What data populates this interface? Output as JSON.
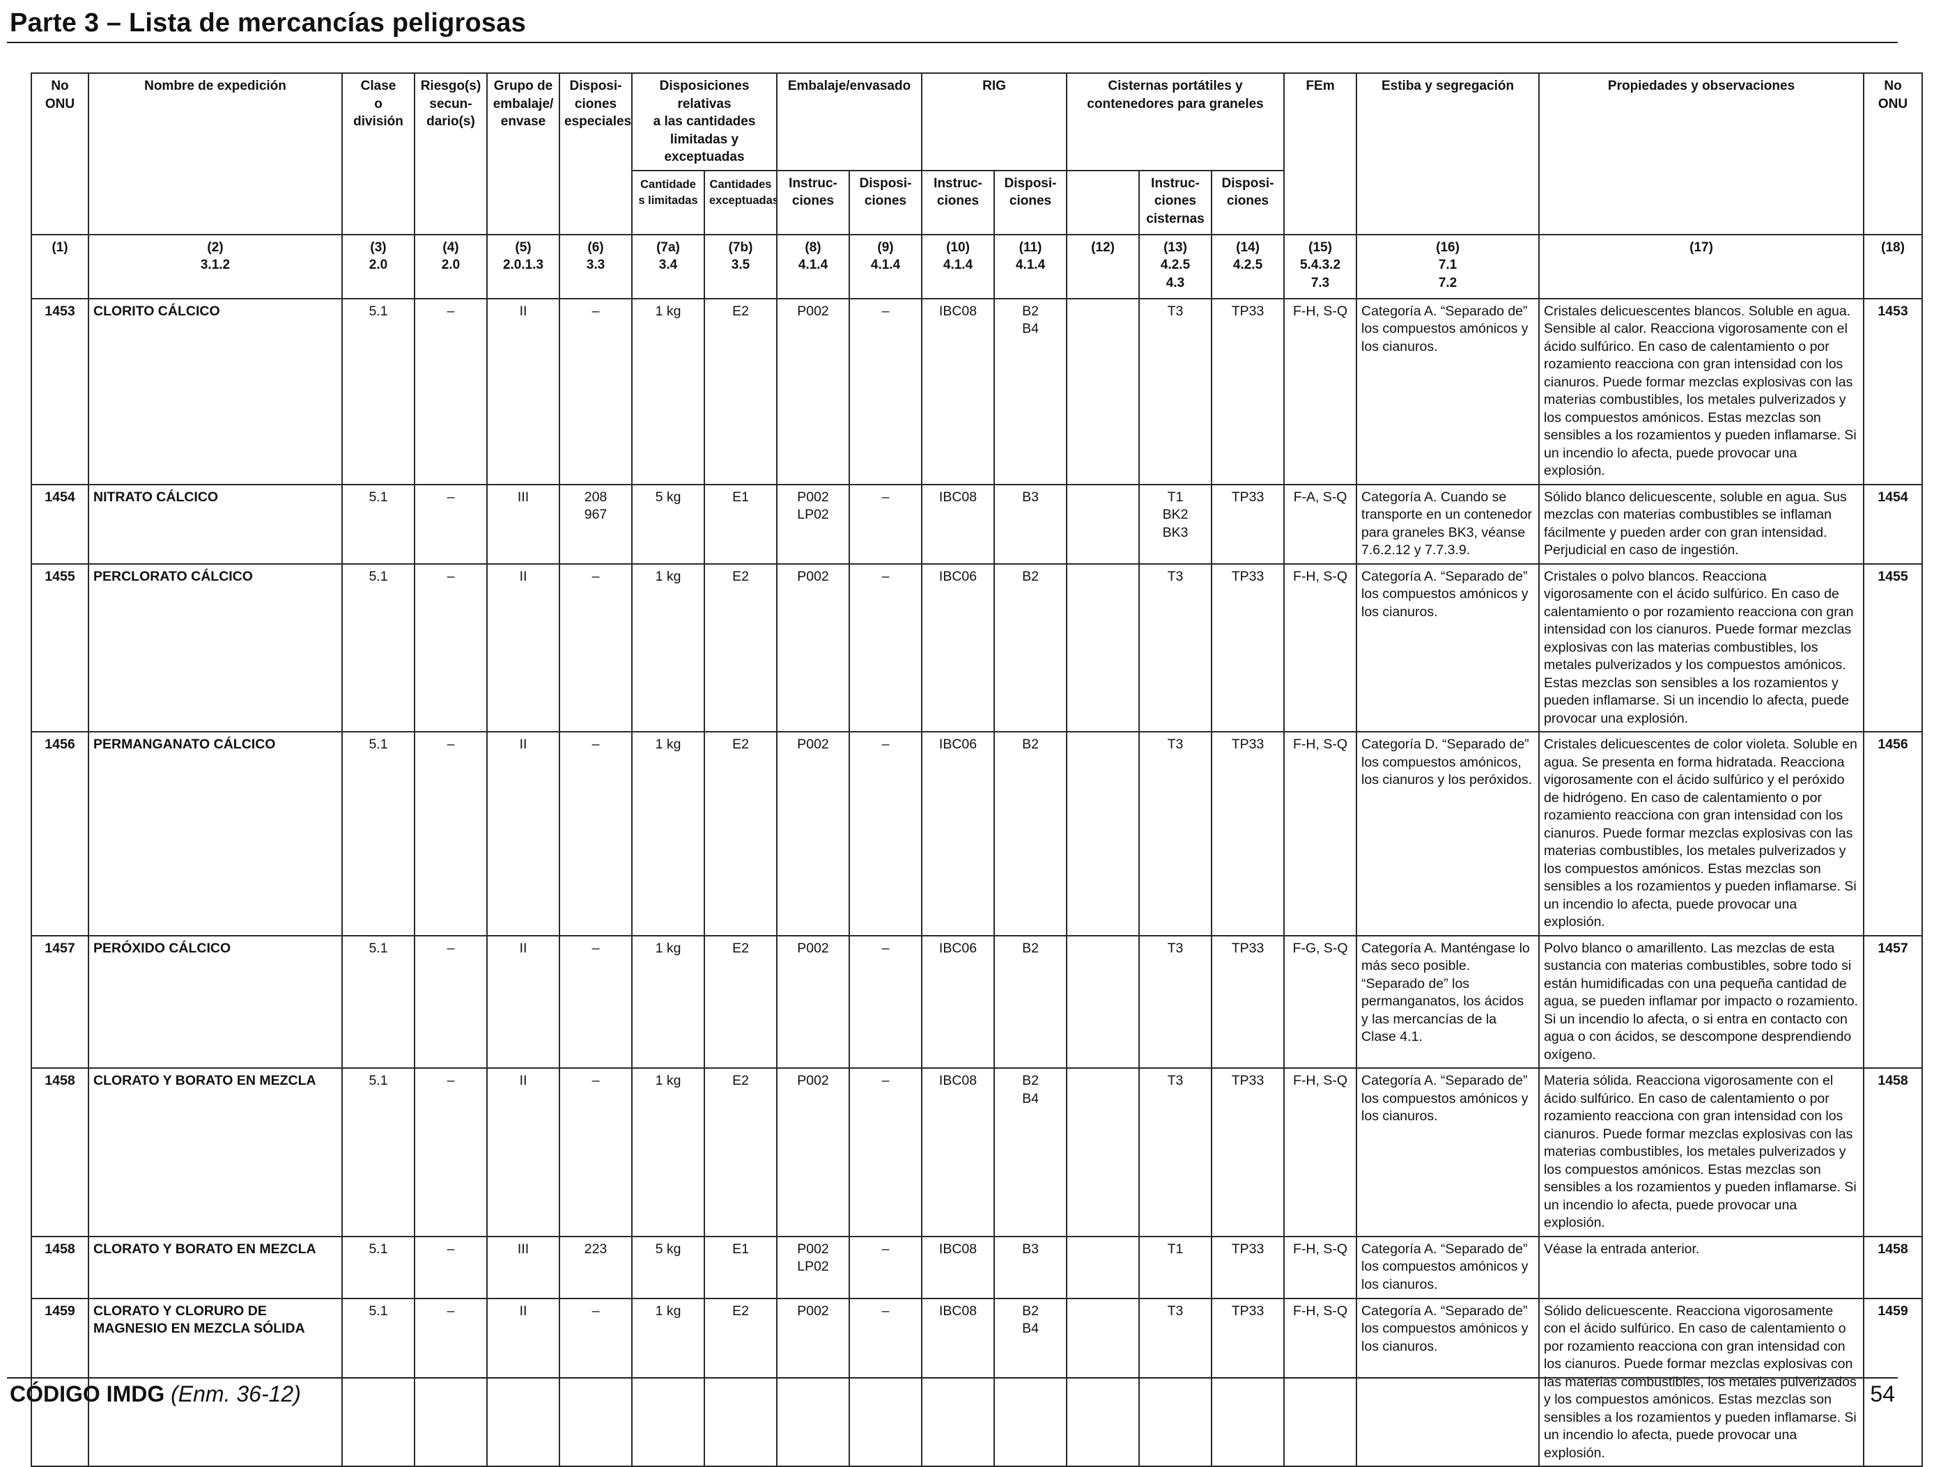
{
  "page": {
    "title": "Parte 3 – Lista de mercancías peligrosas",
    "footer_code": "CÓDIGO IMDG",
    "footer_edition": "(Enm. 36-12)",
    "page_number": "54"
  },
  "headers": {
    "no_onu": "No\nONU",
    "nombre": "Nombre de expedición",
    "clase": "Clase\no\ndivisión",
    "riesgo": "Riesgo(s)\nsecun-\ndario(s)",
    "grupo": "Grupo de\nembalaje/\nenvase",
    "disposiciones_especiales": "Disposi-\nciones\nespeciales",
    "cantidades_group": "Disposiciones relativas\na las cantidades\nlimitadas y exceptuadas",
    "cantidades_limitadas": "Cantidade\ns limitadas",
    "cantidades_exceptuadas": "Cantidades\nexceptuadas",
    "embalaje_group": "Embalaje/envasado",
    "embalaje_instr": "Instruc-\nciones",
    "embalaje_disp": "Disposi-\nciones",
    "rig_group": "RIG",
    "rig_instr": "Instruc-\nciones",
    "rig_disp": "Disposi-\nciones",
    "cisternas_group": "Cisternas portátiles y\ncontenedores para graneles",
    "cisternas_instr": "Instruc-\nciones\ncisternas",
    "cisternas_disp": "Disposi-\nciones",
    "fem": "FEm",
    "estiba": "Estiba y segregación",
    "propiedades": "Propiedades y observaciones",
    "no_onu_right": "No\nONU"
  },
  "column_refs": [
    "(1)",
    "(2)\n3.1.2",
    "(3)\n2.0",
    "(4)\n2.0",
    "(5)\n2.0.1.3",
    "(6)\n3.3",
    "(7a)\n3.4",
    "(7b)\n3.5",
    "(8)\n4.1.4",
    "(9)\n4.1.4",
    "(10)\n4.1.4",
    "(11)\n4.1.4",
    "(12)",
    "(13)\n4.2.5\n4.3",
    "(14)\n4.2.5",
    "(15)\n5.4.3.2\n7.3",
    "(16)\n7.1\n7.2",
    "(17)",
    "(18)"
  ],
  "rows": [
    {
      "no": "1453",
      "nombre": "CLORITO CÁLCICO",
      "clase": "5.1",
      "riesgo": "–",
      "grupo": "II",
      "disp_esp": "–",
      "cant_lim": "1 kg",
      "cant_exc": "E2",
      "emb_instr": "P002",
      "emb_disp": "–",
      "rig_instr": "IBC08",
      "rig_disp": "B2\nB4",
      "c12": "",
      "cist_instr": "T3",
      "cist_disp": "TP33",
      "fem": "F-H, S-Q",
      "estiba": "Categoría A. “Separado de” los compuestos amónicos y los cianuros.",
      "propiedades": "Cristales delicuescentes blancos. Soluble en agua. Sensible al calor. Reacciona vigorosamente con el ácido sulfúrico. En caso de calentamiento o por rozamiento reacciona con gran intensidad con los cianuros. Puede formar mezclas explosivas con las materias combustibles, los metales pulverizados y los compuestos amónicos. Estas mezclas son sensibles a los rozamientos y pueden inflamarse. Si un incendio lo afecta, puede provocar una explosión.",
      "no_right": "1453"
    },
    {
      "no": "1454",
      "nombre": "NITRATO CÁLCICO",
      "clase": "5.1",
      "riesgo": "–",
      "grupo": "III",
      "disp_esp": "208\n967",
      "cant_lim": "5 kg",
      "cant_exc": "E1",
      "emb_instr": "P002\nLP02",
      "emb_disp": "–",
      "rig_instr": "IBC08",
      "rig_disp": "B3",
      "c12": "",
      "cist_instr": "T1\nBK2\nBK3",
      "cist_disp": "TP33",
      "fem": "F-A, S-Q",
      "estiba": "Categoría A. Cuando se transporte en un contenedor para graneles BK3, véanse 7.6.2.12 y 7.7.3.9.",
      "propiedades": "Sólido blanco delicuescente, soluble en agua. Sus mezclas con materias combustibles se inflaman fácilmente y pueden arder con gran intensidad. Perjudicial en caso de ingestión.",
      "no_right": "1454"
    },
    {
      "no": "1455",
      "nombre": "PERCLORATO CÁLCICO",
      "clase": "5.1",
      "riesgo": "–",
      "grupo": "II",
      "disp_esp": "–",
      "cant_lim": "1 kg",
      "cant_exc": "E2",
      "emb_instr": "P002",
      "emb_disp": "–",
      "rig_instr": "IBC06",
      "rig_disp": "B2",
      "c12": "",
      "cist_instr": "T3",
      "cist_disp": "TP33",
      "fem": "F-H, S-Q",
      "estiba": "Categoría A. “Separado de” los compuestos amónicos y los cianuros.",
      "propiedades": "Cristales o polvo blancos. Reacciona vigorosamente con el ácido sulfúrico. En caso de calentamiento o por rozamiento reacciona con gran intensidad con los cianuros. Puede formar mezclas explosivas con las materias combustibles, los metales pulverizados y los compuestos amónicos. Estas mezclas son sensibles a los rozamientos y pueden inflamarse. Si un incendio lo afecta, puede provocar una explosión.",
      "no_right": "1455"
    },
    {
      "no": "1456",
      "nombre": "PERMANGANATO CÁLCICO",
      "clase": "5.1",
      "riesgo": "–",
      "grupo": "II",
      "disp_esp": "–",
      "cant_lim": "1 kg",
      "cant_exc": "E2",
      "emb_instr": "P002",
      "emb_disp": "–",
      "rig_instr": "IBC06",
      "rig_disp": "B2",
      "c12": "",
      "cist_instr": "T3",
      "cist_disp": "TP33",
      "fem": "F-H, S-Q",
      "estiba": "Categoría D. “Separado de” los compuestos amónicos, los cianuros y los peróxidos.",
      "propiedades": "Cristales delicuescentes de color violeta. Soluble en agua. Se presenta en forma hidratada. Reacciona vigorosamente con el ácido sulfúrico y el peróxido de hidrógeno. En caso de calentamiento o por rozamiento reacciona con gran intensidad con los cianuros. Puede formar mezclas explosivas con las materias combustibles, los metales pulverizados y los compuestos amónicos. Estas mezclas son sensibles a los rozamientos y pueden inflamarse. Si un incendio lo afecta, puede provocar una explosión.",
      "no_right": "1456"
    },
    {
      "no": "1457",
      "nombre": "PERÓXIDO CÁLCICO",
      "clase": "5.1",
      "riesgo": "–",
      "grupo": "II",
      "disp_esp": "–",
      "cant_lim": "1 kg",
      "cant_exc": "E2",
      "emb_instr": "P002",
      "emb_disp": "–",
      "rig_instr": "IBC06",
      "rig_disp": "B2",
      "c12": "",
      "cist_instr": "T3",
      "cist_disp": "TP33",
      "fem": "F-G, S-Q",
      "estiba": "Categoría A. Manténgase lo más seco posible. “Separado de” los permanganatos, los ácidos y las mercancías de la Clase 4.1.",
      "propiedades": "Polvo blanco o amarillento. Las mezclas de esta sustancia con materias combustibles, sobre todo si están humidificadas con una pequeña cantidad de agua, se pueden inflamar por impacto o rozamiento. Si un incendio lo afecta, o si entra en contacto con agua o con ácidos, se descompone desprendiendo oxígeno.",
      "no_right": "1457"
    },
    {
      "no": "1458",
      "nombre": "CLORATO Y BORATO EN MEZCLA",
      "clase": "5.1",
      "riesgo": "–",
      "grupo": "II",
      "disp_esp": "–",
      "cant_lim": "1 kg",
      "cant_exc": "E2",
      "emb_instr": "P002",
      "emb_disp": "–",
      "rig_instr": "IBC08",
      "rig_disp": "B2\nB4",
      "c12": "",
      "cist_instr": "T3",
      "cist_disp": "TP33",
      "fem": "F-H, S-Q",
      "estiba": "Categoría A. “Separado de” los compuestos amónicos y los cianuros.",
      "propiedades": "Materia sólida. Reacciona vigorosamente con el ácido sulfúrico. En caso de calentamiento o por rozamiento reacciona con gran intensidad con los cianuros. Puede formar mezclas explosivas con las materias combustibles, los metales pulverizados y los compuestos amónicos. Estas mezclas son sensibles a los rozamientos y pueden inflamarse. Si un incendio lo afecta, puede provocar una explosión.",
      "no_right": "1458"
    },
    {
      "no": "1458",
      "nombre": "CLORATO Y BORATO EN MEZCLA",
      "clase": "5.1",
      "riesgo": "–",
      "grupo": "III",
      "disp_esp": "223",
      "cant_lim": "5 kg",
      "cant_exc": "E1",
      "emb_instr": "P002\nLP02",
      "emb_disp": "–",
      "rig_instr": "IBC08",
      "rig_disp": "B3",
      "c12": "",
      "cist_instr": "T1",
      "cist_disp": "TP33",
      "fem": "F-H, S-Q",
      "estiba": "Categoría A. “Separado de” los compuestos amónicos y los cianuros.",
      "propiedades": "Véase la entrada anterior.",
      "no_right": "1458"
    },
    {
      "no": "1459",
      "nombre": "CLORATO Y CLORURO DE MAGNESIO EN MEZCLA SÓLIDA",
      "clase": "5.1",
      "riesgo": "–",
      "grupo": "II",
      "disp_esp": "–",
      "cant_lim": "1 kg",
      "cant_exc": "E2",
      "emb_instr": "P002",
      "emb_disp": "–",
      "rig_instr": "IBC08",
      "rig_disp": "B2\nB4",
      "c12": "",
      "cist_instr": "T3",
      "cist_disp": "TP33",
      "fem": "F-H, S-Q",
      "estiba": "Categoría A. “Separado de” los compuestos amónicos y los cianuros.",
      "propiedades": "Sólido delicuescente. Reacciona vigorosamente con el ácido sulfúrico. En caso de calentamiento o por rozamiento reacciona con gran intensidad con los cianuros. Puede formar mezclas explosivas con las materias combustibles, los metales pulverizados y los compuestos amónicos. Estas mezclas son sensibles a los rozamientos y pueden inflamarse. Si un incendio lo afecta, puede provocar una explosión.",
      "no_right": "1459"
    }
  ]
}
